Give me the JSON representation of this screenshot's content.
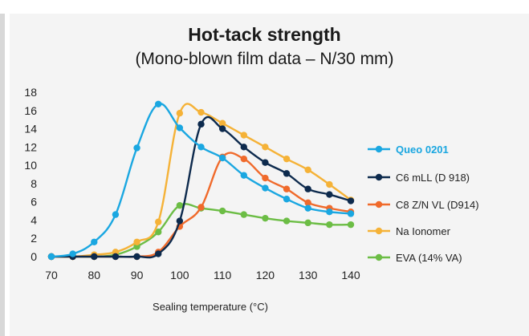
{
  "chart_data": {
    "type": "line",
    "title": "Hot-tack strength",
    "subtitle": "(Mono-blown film data – N/30 mm)",
    "xlabel": "Sealing temperature (°C)",
    "ylabel": "",
    "xlim": [
      70,
      140
    ],
    "ylim": [
      0,
      18
    ],
    "x_ticks": [
      70,
      80,
      90,
      100,
      110,
      120,
      130,
      140
    ],
    "y_ticks": [
      0,
      2,
      4,
      6,
      8,
      10,
      12,
      14,
      16,
      18
    ],
    "grid": false,
    "legend_position": "right",
    "series": [
      {
        "name": "Queo 0201",
        "color": "#1aa7e1",
        "bold": true,
        "x": [
          70,
          75,
          80,
          85,
          90,
          95,
          100,
          105,
          110,
          115,
          120,
          125,
          130,
          135,
          140
        ],
        "y": [
          0,
          0.3,
          1.6,
          4.6,
          11.9,
          16.7,
          14.1,
          12.0,
          10.8,
          8.9,
          7.5,
          6.3,
          5.3,
          4.9,
          4.7
        ]
      },
      {
        "name": "C6 mLL (D 918)",
        "color": "#0d2a4d",
        "x": [
          70,
          75,
          80,
          85,
          90,
          95,
          100,
          105,
          110,
          115,
          120,
          125,
          130,
          135,
          140
        ],
        "y": [
          0,
          0,
          0,
          0,
          0,
          0.3,
          3.9,
          14.5,
          14.0,
          12.0,
          10.3,
          9.1,
          7.4,
          6.8,
          6.1
        ]
      },
      {
        "name": "C8 Z/N VL (D914)",
        "color": "#f06a2b",
        "x": [
          70,
          75,
          80,
          85,
          90,
          95,
          100,
          105,
          110,
          115,
          120,
          125,
          130,
          135,
          140
        ],
        "y": [
          0,
          0,
          0,
          0,
          0,
          0.5,
          3.3,
          5.4,
          10.9,
          10.7,
          8.6,
          7.4,
          5.9,
          5.3,
          4.9
        ]
      },
      {
        "name": "Na Ionomer",
        "color": "#f5b237",
        "x": [
          70,
          75,
          80,
          85,
          90,
          95,
          100,
          105,
          110,
          115,
          120,
          125,
          130,
          135,
          140
        ],
        "y": [
          0,
          0,
          0.2,
          0.5,
          1.6,
          3.8,
          15.7,
          15.8,
          14.6,
          13.3,
          12.0,
          10.7,
          9.5,
          7.9,
          6.2
        ]
      },
      {
        "name": "EVA (14% VA)",
        "color": "#6cbd45",
        "x": [
          70,
          75,
          80,
          85,
          90,
          95,
          100,
          105,
          110,
          115,
          120,
          125,
          130,
          135,
          140
        ],
        "y": [
          0,
          0,
          0,
          0.2,
          1.1,
          2.7,
          5.6,
          5.3,
          5.0,
          4.6,
          4.2,
          3.9,
          3.7,
          3.5,
          3.5
        ]
      }
    ]
  }
}
